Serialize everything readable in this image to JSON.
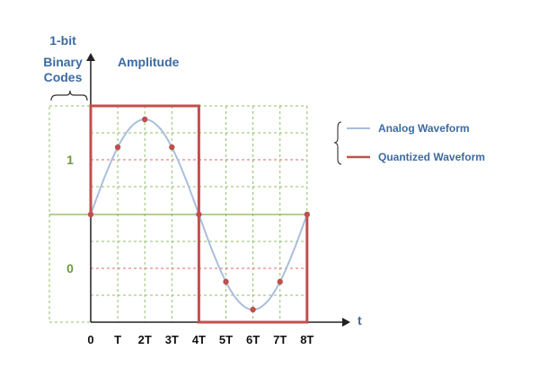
{
  "labels": {
    "codes_title": [
      "1-bit",
      "Binary",
      "Codes"
    ],
    "y_axis": "Amplitude",
    "x_axis": "t",
    "code_high": "1",
    "code_low": "0"
  },
  "legend": [
    {
      "label": "Analog Waveform",
      "color": "#a9bfdc"
    },
    {
      "label": "Quantized Waveform",
      "color": "#c0504d"
    }
  ],
  "chart_data": {
    "type": "line",
    "x_ticks": [
      "0",
      "T",
      "2T",
      "3T",
      "4T",
      "5T",
      "6T",
      "7T",
      "8T"
    ],
    "series": [
      {
        "name": "Analog Waveform",
        "kind": "sine",
        "period_samples": 8,
        "samples": [
          0,
          0.707,
          1,
          0.707,
          0,
          -0.707,
          -1,
          -0.707,
          0
        ]
      },
      {
        "name": "Quantized Waveform",
        "kind": "step",
        "codes": [
          1,
          1,
          1,
          1,
          0,
          0,
          0,
          0
        ]
      }
    ],
    "grid": true
  },
  "colors": {
    "text_blue": "#3d6aa0",
    "code_green": "#6a9a3a",
    "grid_green": "#8fbf6a",
    "quant_red": "#c0504d",
    "analog_blue": "#a9bfdc"
  }
}
